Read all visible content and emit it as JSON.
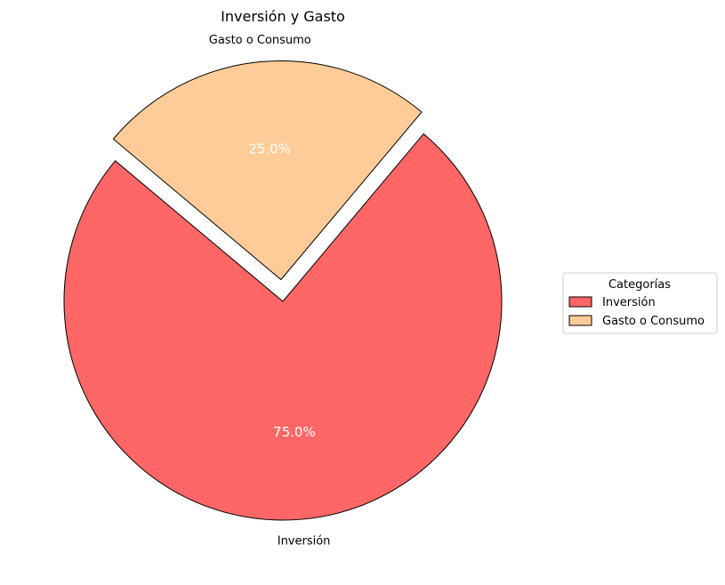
{
  "chart_data": {
    "type": "pie",
    "title": "Inversión y Gasto",
    "categories": [
      "Inversión",
      "Gasto o Consumo"
    ],
    "values": [
      75,
      25
    ],
    "percent_labels": [
      "75.0%",
      "25.0%"
    ],
    "explode": [
      0,
      0.1
    ],
    "start_angle": 140,
    "colors": [
      "#ff6666",
      "#ffcc99"
    ],
    "edge_color": "#000000",
    "legend": {
      "title": "Categorías",
      "placement": "center-right",
      "entries": [
        "Inversión",
        "Gasto o Consumo"
      ]
    }
  }
}
